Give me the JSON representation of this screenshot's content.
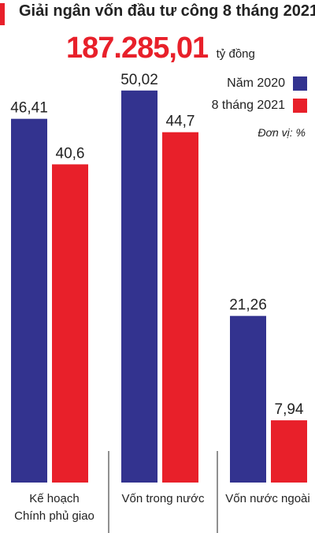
{
  "header": {
    "title": "Giải ngân vốn đầu tư công 8 tháng 2021",
    "total_value": "187.285,01",
    "total_unit": "tỷ đồng"
  },
  "unit_note": "Đơn vị: %",
  "colors": {
    "accent": "#e8202a",
    "series_2020": "#33338f",
    "series_2021": "#e8202a"
  },
  "chart_data": {
    "type": "bar",
    "title": "Giải ngân vốn đầu tư công 8 tháng 2021",
    "categories": [
      "Kế hoạch Chính phủ giao",
      "Vốn trong nước",
      "Vốn nước ngoài"
    ],
    "category_lines": [
      [
        "Kế hoạch",
        "Chính phủ giao"
      ],
      [
        "Vốn trong nước"
      ],
      [
        "Vốn nước ngoài"
      ]
    ],
    "series": [
      {
        "name": "Năm 2020",
        "color": "#33338f",
        "values": [
          46.41,
          50.02,
          21.26
        ],
        "labels": [
          "46,41",
          "50,02",
          "21,26"
        ]
      },
      {
        "name": "8 tháng 2021",
        "color": "#e8202a",
        "values": [
          40.6,
          44.7,
          7.94
        ],
        "labels": [
          "40,6",
          "44,7",
          "7,94"
        ]
      }
    ],
    "unit": "%",
    "ylim": [
      0,
      55
    ],
    "grid": false,
    "legend_position": "top-right"
  }
}
